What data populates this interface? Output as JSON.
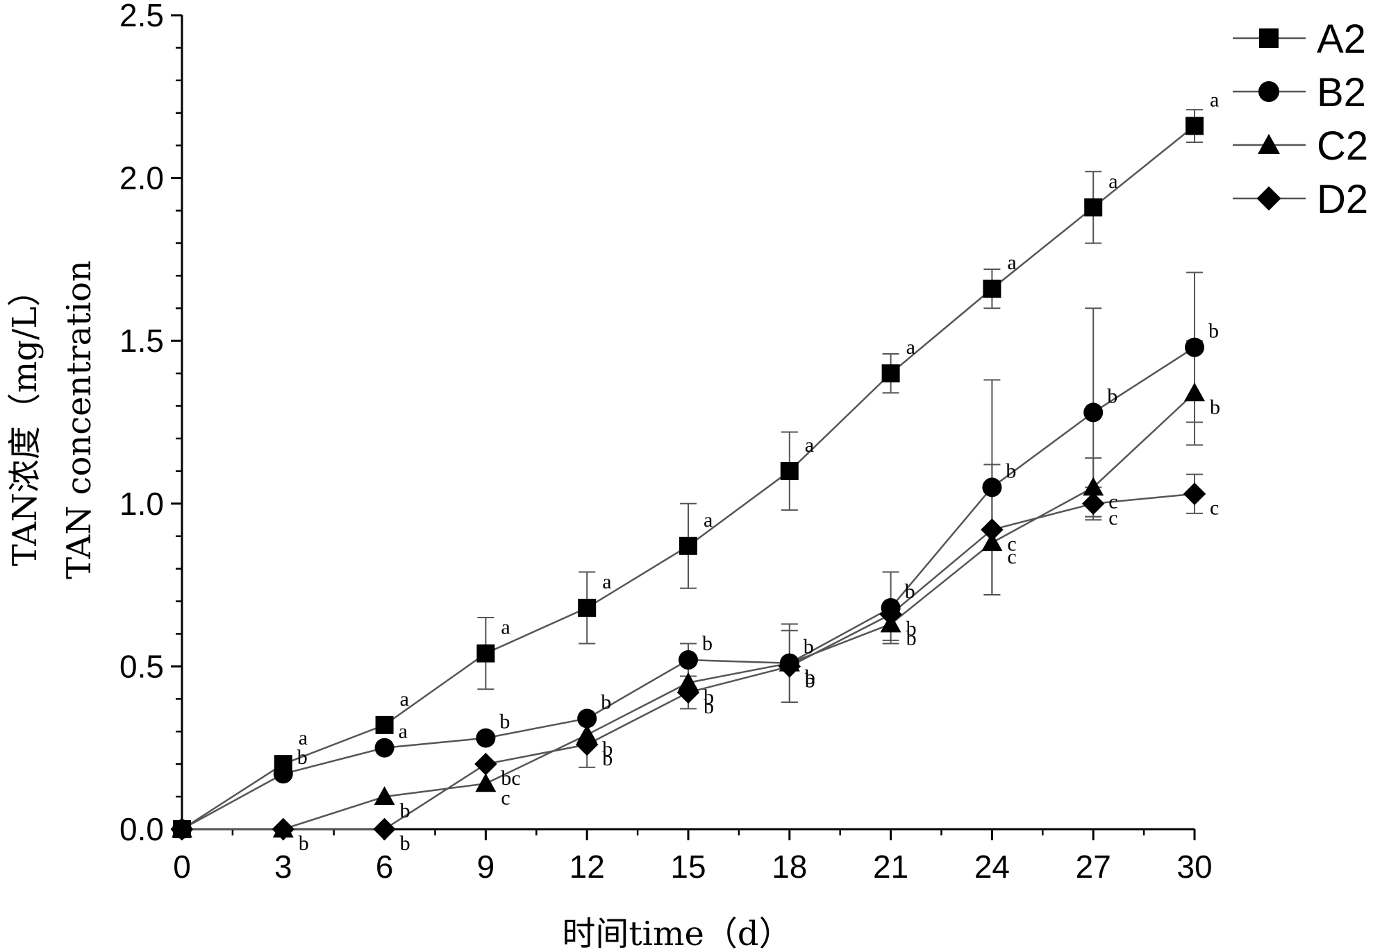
{
  "chart_data": {
    "type": "line",
    "xlabel": "时间time（d）",
    "ylabel": [
      "TAN浓度（mg/L）",
      "TAN concentration"
    ],
    "xlim": [
      0,
      30
    ],
    "ylim": [
      0,
      2.5
    ],
    "x": [
      0,
      3,
      6,
      9,
      12,
      15,
      18,
      21,
      24,
      27,
      30
    ],
    "xticks": [
      "0",
      "3",
      "6",
      "9",
      "12",
      "15",
      "18",
      "21",
      "24",
      "27",
      "30"
    ],
    "yticks": [
      "0.0",
      "0.5",
      "1.0",
      "1.5",
      "2.0",
      "2.5"
    ],
    "ytick_values": [
      0,
      0.5,
      1.0,
      1.5,
      2.0,
      2.5
    ],
    "legend_position": "top-right",
    "series": [
      {
        "name": "A2",
        "marker": "square",
        "values": [
          0,
          0.2,
          0.32,
          0.54,
          0.68,
          0.87,
          1.1,
          1.4,
          1.66,
          1.91,
          2.16
        ],
        "errors": [
          0,
          0,
          0,
          0.11,
          0.11,
          0.13,
          0.12,
          0.06,
          0.06,
          0.11,
          0.05
        ],
        "labels": [
          "",
          "a",
          "a",
          "a",
          "a",
          "a",
          "a",
          "a",
          "a",
          "a",
          "a"
        ]
      },
      {
        "name": "B2",
        "marker": "circle",
        "values": [
          0,
          0.17,
          0.25,
          0.28,
          0.34,
          0.52,
          0.51,
          0.68,
          1.05,
          1.28,
          1.48
        ],
        "errors": [
          0,
          0,
          0,
          0,
          0,
          0.05,
          0.12,
          0.11,
          0.33,
          0.32,
          0.23
        ],
        "labels": [
          "",
          "b",
          "a",
          "b",
          "b",
          "b",
          "b",
          "b",
          "b",
          "b",
          "b"
        ]
      },
      {
        "name": "C2",
        "marker": "triangle",
        "values": [
          0,
          0,
          0.1,
          0.14,
          0.29,
          0.45,
          0.51,
          0.63,
          0.88,
          1.05,
          1.34
        ],
        "errors": [
          0,
          0,
          0,
          0,
          0,
          0,
          0,
          0.05,
          0.16,
          0.09,
          0.16
        ],
        "labels": [
          "",
          "",
          "b",
          "c",
          "b",
          "b",
          "b",
          "b",
          "c",
          "c",
          "b"
        ]
      },
      {
        "name": "D2",
        "marker": "diamond",
        "values": [
          0,
          0,
          0,
          0.2,
          0.26,
          0.42,
          0.5,
          0.66,
          0.92,
          1.0,
          1.03
        ],
        "errors": [
          0,
          0,
          0,
          0,
          0.07,
          0.05,
          0.11,
          0,
          0.2,
          0.05,
          0.06
        ],
        "labels": [
          "",
          "b",
          "b",
          "bc",
          "b",
          "b",
          "b",
          "b",
          "c",
          "c",
          "c"
        ]
      }
    ]
  }
}
